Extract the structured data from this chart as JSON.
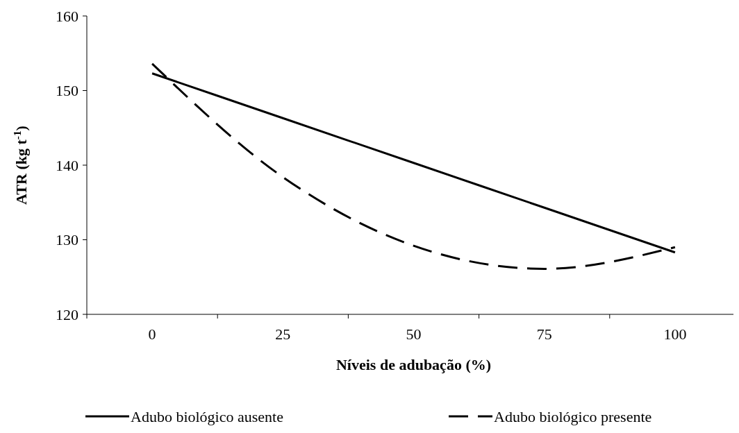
{
  "chart_data": {
    "type": "line",
    "xlabel": "Níveis de adubação (%)",
    "ylabel": "ATR (kg  t$^{-1}$)",
    "categories": [
      "0",
      "25",
      "50",
      "75",
      "100"
    ],
    "series": [
      {
        "name": "Adubo biológico ausente",
        "color": "#000000",
        "line_style": "solid",
        "values": [
          152.3,
          146.3,
          140.3,
          134.3,
          128.3
        ]
      },
      {
        "name": "Adubo biológico presente",
        "color": "#000000",
        "line_style": "dashed",
        "values": [
          153.6,
          138.4,
          129.2,
          126.1,
          129.0
        ]
      }
    ],
    "ylim": [
      120,
      160
    ],
    "yticks": [
      120,
      130,
      140,
      150,
      160
    ],
    "grid": false,
    "legend": "bottom"
  }
}
